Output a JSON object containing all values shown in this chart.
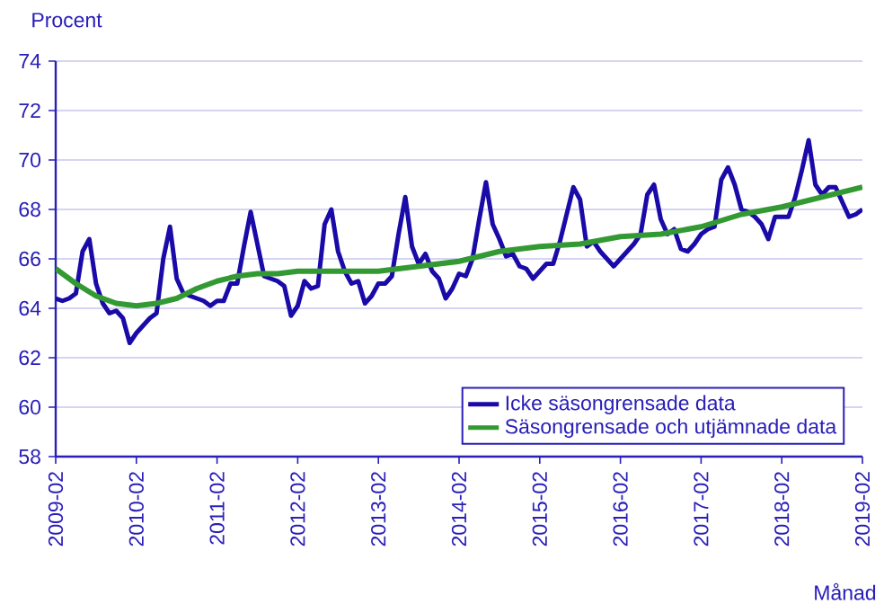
{
  "chart_data": {
    "type": "line",
    "ylabel": "Procent",
    "xlabel": "Månad",
    "xlim": [
      "2009-02",
      "2019-02"
    ],
    "xticks": [
      "2009-02",
      "2010-02",
      "2011-02",
      "2012-02",
      "2013-02",
      "2014-02",
      "2015-02",
      "2016-02",
      "2017-02",
      "2018-02",
      "2019-02"
    ],
    "ylim": [
      58,
      74
    ],
    "yticks": [
      58,
      60,
      62,
      64,
      66,
      68,
      70,
      72,
      74
    ],
    "grid": "y",
    "legend": "bottom right",
    "series": [
      {
        "name": "Icke säsongrensade data",
        "color": "#1a0aa8",
        "x": [
          "2009-02",
          "2009-03",
          "2009-04",
          "2009-05",
          "2009-06",
          "2009-07",
          "2009-08",
          "2009-09",
          "2009-10",
          "2009-11",
          "2009-12",
          "2010-01",
          "2010-02",
          "2010-03",
          "2010-04",
          "2010-05",
          "2010-06",
          "2010-07",
          "2010-08",
          "2010-09",
          "2010-10",
          "2010-11",
          "2010-12",
          "2011-01",
          "2011-02",
          "2011-03",
          "2011-04",
          "2011-05",
          "2011-06",
          "2011-07",
          "2011-08",
          "2011-09",
          "2011-10",
          "2011-11",
          "2011-12",
          "2012-01",
          "2012-02",
          "2012-03",
          "2012-04",
          "2012-05",
          "2012-06",
          "2012-07",
          "2012-08",
          "2012-09",
          "2012-10",
          "2012-11",
          "2012-12",
          "2013-01",
          "2013-02",
          "2013-03",
          "2013-04",
          "2013-05",
          "2013-06",
          "2013-07",
          "2013-08",
          "2013-09",
          "2013-10",
          "2013-11",
          "2013-12",
          "2014-01",
          "2014-02",
          "2014-03",
          "2014-04",
          "2014-05",
          "2014-06",
          "2014-07",
          "2014-08",
          "2014-09",
          "2014-10",
          "2014-11",
          "2014-12",
          "2015-01",
          "2015-02",
          "2015-03",
          "2015-04",
          "2015-05",
          "2015-06",
          "2015-07",
          "2015-08",
          "2015-09",
          "2015-10",
          "2015-11",
          "2015-12",
          "2016-01",
          "2016-02",
          "2016-03",
          "2016-04",
          "2016-05",
          "2016-06",
          "2016-07",
          "2016-08",
          "2016-09",
          "2016-10",
          "2016-11",
          "2016-12",
          "2017-01",
          "2017-02",
          "2017-03",
          "2017-04",
          "2017-05",
          "2017-06",
          "2017-07",
          "2017-08",
          "2017-09",
          "2017-10",
          "2017-11",
          "2017-12",
          "2018-01",
          "2018-02",
          "2018-03",
          "2018-04",
          "2018-05",
          "2018-06",
          "2018-07",
          "2018-08",
          "2018-09",
          "2018-10",
          "2018-11",
          "2018-12",
          "2019-01",
          "2019-02"
        ],
        "values": [
          64.4,
          64.3,
          64.4,
          64.6,
          66.3,
          66.8,
          65.0,
          64.2,
          63.8,
          63.9,
          63.6,
          62.6,
          63.0,
          63.3,
          63.6,
          63.8,
          66.0,
          67.3,
          65.2,
          64.6,
          64.5,
          64.4,
          64.3,
          64.1,
          64.3,
          64.3,
          65.0,
          65.0,
          66.5,
          67.9,
          66.6,
          65.3,
          65.2,
          65.1,
          64.9,
          63.7,
          64.1,
          65.1,
          64.8,
          64.9,
          67.4,
          68.0,
          66.3,
          65.5,
          65.0,
          65.1,
          64.2,
          64.5,
          65.0,
          65.0,
          65.3,
          67.0,
          68.5,
          66.5,
          65.8,
          66.2,
          65.5,
          65.2,
          64.4,
          64.8,
          65.4,
          65.3,
          66.0,
          67.6,
          69.1,
          67.4,
          66.8,
          66.1,
          66.2,
          65.7,
          65.6,
          65.2,
          65.5,
          65.8,
          65.8,
          66.7,
          67.8,
          68.9,
          68.4,
          66.5,
          66.7,
          66.3,
          66.0,
          65.7,
          66.0,
          66.3,
          66.6,
          67.0,
          68.6,
          69.0,
          67.6,
          67.0,
          67.2,
          66.4,
          66.3,
          66.6,
          67.0,
          67.2,
          67.3,
          69.2,
          69.7,
          69.0,
          68.0,
          67.9,
          67.7,
          67.4,
          66.8,
          67.7,
          67.7,
          67.7,
          68.5,
          69.6,
          70.8,
          69.0,
          68.6,
          68.9,
          68.9,
          68.3,
          67.7,
          67.8,
          68.0
        ]
      },
      {
        "name": "Säsongrensade och utjämnade data",
        "color": "#339933",
        "x": [
          "2009-02",
          "2009-05",
          "2009-08",
          "2009-11",
          "2010-02",
          "2010-05",
          "2010-08",
          "2010-11",
          "2011-02",
          "2011-05",
          "2011-08",
          "2011-11",
          "2012-02",
          "2012-08",
          "2013-02",
          "2013-08",
          "2014-02",
          "2014-08",
          "2015-02",
          "2015-08",
          "2016-02",
          "2016-08",
          "2017-02",
          "2017-08",
          "2018-02",
          "2018-08",
          "2019-02"
        ],
        "values": [
          65.6,
          65.0,
          64.5,
          64.2,
          64.1,
          64.2,
          64.4,
          64.8,
          65.1,
          65.3,
          65.4,
          65.4,
          65.5,
          65.5,
          65.5,
          65.7,
          65.9,
          66.3,
          66.5,
          66.6,
          66.9,
          67.0,
          67.3,
          67.8,
          68.1,
          68.5,
          68.9
        ]
      }
    ]
  }
}
